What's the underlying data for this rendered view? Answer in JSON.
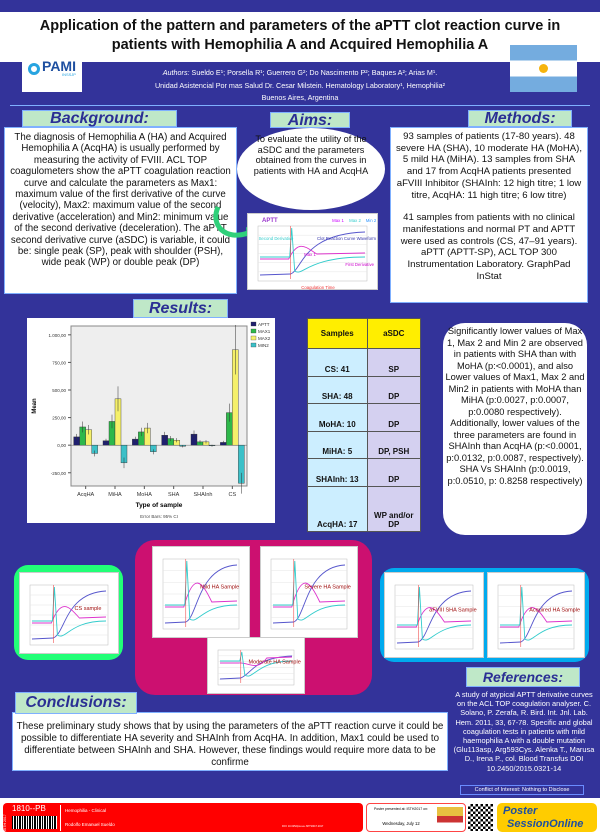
{
  "header": {
    "title_line1": "Application of the pattern and parameters of the aPTT clot reaction curve in",
    "title_line2": "patients with Hemophilia A and Acquired Hemophilia A",
    "authors_label": "Authors:",
    "authors": "Sueldo E¹; Porsella R¹; Guerrero G²; Do Nascimento P²; Baques A²; Arias M¹.",
    "affiliation": "Unidad Asistencial Por mas Salud Dr. Cesar Milstein. Hematology Laboratory¹, Hemophilia²",
    "location": "Buenos Aires, Argentina",
    "logo_text": "PAMI",
    "logo_sub": "INSSJP"
  },
  "background": {
    "heading": "Background:",
    "text": "The diagnosis of Hemophilia A (HA) and Acquired Hemophilia A (AcqHA) is usually performed by measuring the activity of FVIII. ACL TOP coagulometers show the aPTT coagulation reaction curve and calculate the parameters as Max1: maximum value of the first derivative of the curve (velocity), Max2: maximum value of the second derivative (acceleration) and Min2: minimum value of the second derivative (deceleration). The aPTT second derivative curve (aSDC) is variable, it could be: single peak (SP), peak with shoulder (PSH), wide peak (WP) or double peak (DP)"
  },
  "aims": {
    "heading": "Aims:",
    "text": "To evaluate the utility of the aSDC and the parameters obtained from the curves in patients with HA and AcqHA",
    "figure": {
      "title": "APTT",
      "labels": [
        "Max 1",
        "Max 2",
        "Min 2",
        "Second Derivative",
        "Clot Reaction Curve Waveform",
        "Max 1",
        "First Derivative",
        "Coagulation Time"
      ]
    }
  },
  "methods": {
    "heading": "Methods:",
    "para1": "93 samples of patients (17-80 years). 48 severe HA (SHA), 10 moderate HA (MoHA), 5 mild HA (MiHA). 13 samples from SHA and 17 from AcqHA patients presented aFVIII Inhibitor (SHAInh: 12 high titre; 1 low titre, AcqHA: 11 high titre; 6 low titre)",
    "para2": "41 samples from patients with no clinical manifestations and normal PT and APTT were used as controls (CS, 47–91 years). aPTT (APTT-SP), ACL TOP 300 Instrumentation Laboratory. GraphPad InStat"
  },
  "results": {
    "heading": "Results:",
    "table": {
      "headers": [
        "Samples",
        "aSDC"
      ],
      "rows": [
        [
          "CS: 41",
          "SP"
        ],
        [
          "SHA: 48",
          "DP"
        ],
        [
          "MoHA: 10",
          "DP"
        ],
        [
          "MiHA: 5",
          "DP, PSH"
        ],
        [
          "SHAInh: 13",
          "DP"
        ],
        [
          "AcqHA: 17",
          "WP and/or DP"
        ]
      ]
    },
    "text": "Significantly lower values of Max 1, Max 2 and Min 2 are observed in patients with SHA than with MoHA (p:<0.0001), and also Lower values of Max1, Max 2 and Min2 in patients with MoHA than MiHA (p:0.0027, p:0.0007, p:0.0080 respectively). Additionally, lower values of the three parameters are found in SHAInh than AcqHA (p:<0.0001, p:0.0132, p:0.0087, respectively). SHA Vs SHAInh (p:0.0019, p:0.0510, p: 0.8258 respectively)"
  },
  "chart_data": {
    "type": "bar",
    "categories": [
      "AcqHA",
      "MiHA",
      "MoHA",
      "SHA",
      "SHAInh",
      "CS"
    ],
    "series": [
      {
        "name": "APTT",
        "color": "#1f1f6e",
        "values": [
          75,
          40,
          55,
          90,
          100,
          25
        ]
      },
      {
        "name": "MAX1",
        "color": "#2db84a",
        "values": [
          165,
          215,
          120,
          60,
          30,
          295
        ]
      },
      {
        "name": "MAX2",
        "color": "#f5f06a",
        "values": [
          140,
          420,
          155,
          45,
          30,
          865
        ]
      },
      {
        "name": "MIN2",
        "color": "#3cc0c8",
        "values": [
          -75,
          -160,
          -60,
          -10,
          -5,
          -345
        ]
      }
    ],
    "yticks": [
      "-250,00",
      "0,00",
      "250,00",
      "500,00",
      "750,00",
      "1.000,00"
    ],
    "ytick_values": [
      -250,
      0,
      250,
      500,
      750,
      1000
    ],
    "ylim": [
      -370,
      1080
    ],
    "xlabel": "Type of sample",
    "ylabel": "Mean",
    "footnote": "Error Bars: 95% CI",
    "legend": "top-right",
    "grid": false
  },
  "samples": [
    {
      "label": "CS sample",
      "frame": "#22ff77"
    },
    {
      "label": "Mild HA Sample",
      "frame": "#cc1070"
    },
    {
      "label": "Severe HA Sample",
      "frame": "#cc1070"
    },
    {
      "label": "Moderate HA Sample",
      "frame": "#cc1070"
    },
    {
      "label": "aFVIII SHA Sample",
      "frame": "#00aaee"
    },
    {
      "label": "Acquired HA Sample",
      "frame": "#00aaee"
    }
  ],
  "conclusions": {
    "heading": "Conclusions:",
    "text": "These preliminary study shows that by using the parameters of the aPTT reaction curve it could be possible to differentiate HA severity and SHAInh from AcqHA. In addition, Max1 could be used to differentiate between SHAInh and SHA. However, these findings would require more data to be confirme"
  },
  "references": {
    "heading": "References:",
    "text": "A study of atypical APTT derivative curves on the ACL TOP coagulation analyser. C. Solano, P. Zerafa, R. Bird. Int. Jnl. Lab. Hem. 2011, 33, 67-78. Specific and global coagulation tests in patients with mild haemophilia A with a double mutation (Glu113asp, Arg593Cys. Alenka T., Marusa D., Irena P., col. Blood Transfus DOI 10.2450/2015.0321-14",
    "coi": "Conflict of Interest: Nothing to Disclose"
  },
  "footer": {
    "code": "1810--PB",
    "side": "ISTH 2017",
    "category": "Hemophilia - Clinical",
    "presenter": "Rodolfo Emanuel Sueldo",
    "doi": "DOI: 10.3252/pso.eu.ISTH2017.2017",
    "presented_at": "Poster presented at: ISTH2017 on:",
    "date": "Wednesday, July 12",
    "pso_brand1": "Poster",
    "pso_brand2": "SessionOnline"
  }
}
